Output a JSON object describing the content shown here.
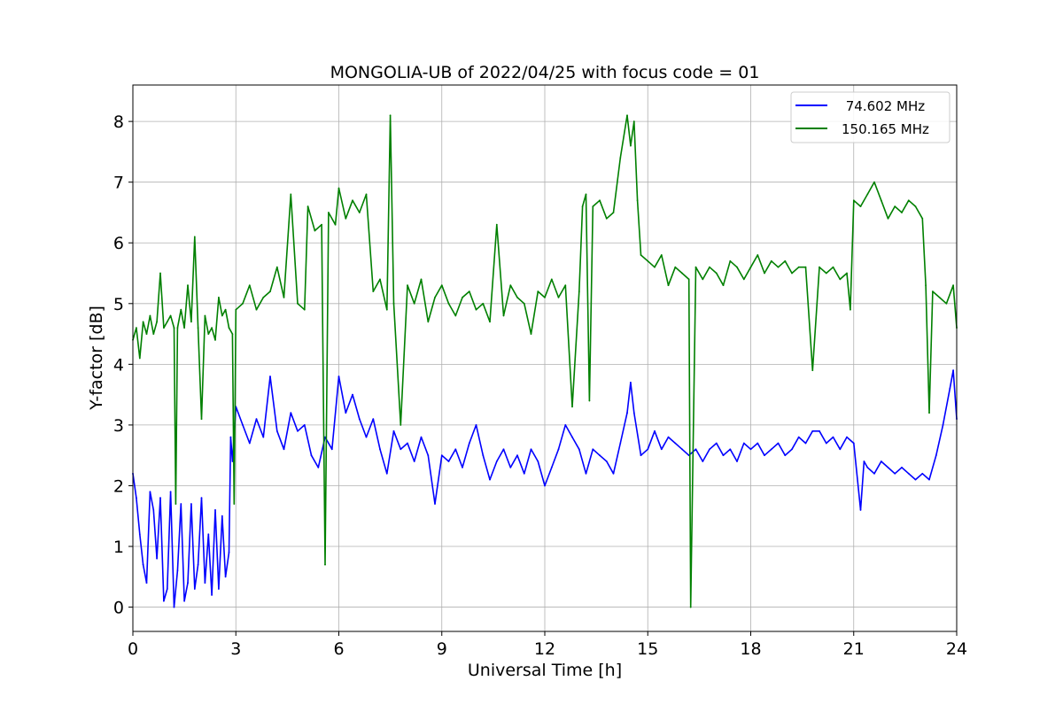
{
  "chart_data": {
    "type": "line",
    "title": "MONGOLIA-UB of 2022/04/25 with focus code = 01",
    "xlabel": "Universal Time [h]",
    "ylabel": "Y-factor [dB]",
    "xlim": [
      0,
      24
    ],
    "ylim": [
      -0.4,
      8.6
    ],
    "x_ticks": [
      0,
      3,
      6,
      9,
      12,
      15,
      18,
      21,
      24
    ],
    "x_tick_labels": [
      "0",
      "3",
      "6",
      "9",
      "12",
      "15",
      "18",
      "21",
      "24"
    ],
    "y_ticks": [
      0,
      1,
      2,
      3,
      4,
      5,
      6,
      7,
      8
    ],
    "y_tick_labels": [
      "0",
      "1",
      "2",
      "3",
      "4",
      "5",
      "6",
      "7",
      "8"
    ],
    "grid": true,
    "legend_position": "top-right",
    "series": [
      {
        "name": " 74.602 MHz",
        "color": "#0000ff",
        "points": [
          [
            0.0,
            2.2
          ],
          [
            0.1,
            1.8
          ],
          [
            0.2,
            1.2
          ],
          [
            0.3,
            0.7
          ],
          [
            0.4,
            0.4
          ],
          [
            0.5,
            1.9
          ],
          [
            0.6,
            1.6
          ],
          [
            0.7,
            0.8
          ],
          [
            0.8,
            1.8
          ],
          [
            0.9,
            0.1
          ],
          [
            1.0,
            0.3
          ],
          [
            1.1,
            1.9
          ],
          [
            1.2,
            0.0
          ],
          [
            1.3,
            0.6
          ],
          [
            1.4,
            1.7
          ],
          [
            1.5,
            0.1
          ],
          [
            1.6,
            0.4
          ],
          [
            1.7,
            1.7
          ],
          [
            1.8,
            0.3
          ],
          [
            1.9,
            0.7
          ],
          [
            2.0,
            1.8
          ],
          [
            2.1,
            0.4
          ],
          [
            2.2,
            1.2
          ],
          [
            2.3,
            0.2
          ],
          [
            2.4,
            1.6
          ],
          [
            2.5,
            0.3
          ],
          [
            2.6,
            1.5
          ],
          [
            2.7,
            0.5
          ],
          [
            2.8,
            0.9
          ],
          [
            2.85,
            2.8
          ],
          [
            2.9,
            2.4
          ],
          [
            3.0,
            3.3
          ],
          [
            3.2,
            3.0
          ],
          [
            3.4,
            2.7
          ],
          [
            3.6,
            3.1
          ],
          [
            3.8,
            2.8
          ],
          [
            4.0,
            3.8
          ],
          [
            4.2,
            2.9
          ],
          [
            4.4,
            2.6
          ],
          [
            4.6,
            3.2
          ],
          [
            4.8,
            2.9
          ],
          [
            5.0,
            3.0
          ],
          [
            5.2,
            2.5
          ],
          [
            5.4,
            2.3
          ],
          [
            5.6,
            2.8
          ],
          [
            5.8,
            2.6
          ],
          [
            6.0,
            3.8
          ],
          [
            6.2,
            3.2
          ],
          [
            6.4,
            3.5
          ],
          [
            6.6,
            3.1
          ],
          [
            6.8,
            2.8
          ],
          [
            7.0,
            3.1
          ],
          [
            7.2,
            2.6
          ],
          [
            7.4,
            2.2
          ],
          [
            7.6,
            2.9
          ],
          [
            7.8,
            2.6
          ],
          [
            8.0,
            2.7
          ],
          [
            8.2,
            2.4
          ],
          [
            8.4,
            2.8
          ],
          [
            8.6,
            2.5
          ],
          [
            8.8,
            1.7
          ],
          [
            9.0,
            2.5
          ],
          [
            9.2,
            2.4
          ],
          [
            9.4,
            2.6
          ],
          [
            9.6,
            2.3
          ],
          [
            9.8,
            2.7
          ],
          [
            10.0,
            3.0
          ],
          [
            10.2,
            2.5
          ],
          [
            10.4,
            2.1
          ],
          [
            10.6,
            2.4
          ],
          [
            10.8,
            2.6
          ],
          [
            11.0,
            2.3
          ],
          [
            11.2,
            2.5
          ],
          [
            11.4,
            2.2
          ],
          [
            11.6,
            2.6
          ],
          [
            11.8,
            2.4
          ],
          [
            12.0,
            2.0
          ],
          [
            12.2,
            2.3
          ],
          [
            12.4,
            2.6
          ],
          [
            12.6,
            3.0
          ],
          [
            12.8,
            2.8
          ],
          [
            13.0,
            2.6
          ],
          [
            13.2,
            2.2
          ],
          [
            13.4,
            2.6
          ],
          [
            13.6,
            2.5
          ],
          [
            13.8,
            2.4
          ],
          [
            14.0,
            2.2
          ],
          [
            14.2,
            2.7
          ],
          [
            14.4,
            3.2
          ],
          [
            14.5,
            3.7
          ],
          [
            14.6,
            3.2
          ],
          [
            14.8,
            2.5
          ],
          [
            15.0,
            2.6
          ],
          [
            15.2,
            2.9
          ],
          [
            15.4,
            2.6
          ],
          [
            15.6,
            2.8
          ],
          [
            15.8,
            2.7
          ],
          [
            16.0,
            2.6
          ],
          [
            16.2,
            2.5
          ],
          [
            16.4,
            2.6
          ],
          [
            16.6,
            2.4
          ],
          [
            16.8,
            2.6
          ],
          [
            17.0,
            2.7
          ],
          [
            17.2,
            2.5
          ],
          [
            17.4,
            2.6
          ],
          [
            17.6,
            2.4
          ],
          [
            17.8,
            2.7
          ],
          [
            18.0,
            2.6
          ],
          [
            18.2,
            2.7
          ],
          [
            18.4,
            2.5
          ],
          [
            18.6,
            2.6
          ],
          [
            18.8,
            2.7
          ],
          [
            19.0,
            2.5
          ],
          [
            19.2,
            2.6
          ],
          [
            19.4,
            2.8
          ],
          [
            19.6,
            2.7
          ],
          [
            19.8,
            2.9
          ],
          [
            20.0,
            2.9
          ],
          [
            20.2,
            2.7
          ],
          [
            20.4,
            2.8
          ],
          [
            20.6,
            2.6
          ],
          [
            20.8,
            2.8
          ],
          [
            21.0,
            2.7
          ],
          [
            21.2,
            1.6
          ],
          [
            21.3,
            2.4
          ],
          [
            21.4,
            2.3
          ],
          [
            21.6,
            2.2
          ],
          [
            21.8,
            2.4
          ],
          [
            22.0,
            2.3
          ],
          [
            22.2,
            2.2
          ],
          [
            22.4,
            2.3
          ],
          [
            22.6,
            2.2
          ],
          [
            22.8,
            2.1
          ],
          [
            23.0,
            2.2
          ],
          [
            23.2,
            2.1
          ],
          [
            23.4,
            2.5
          ],
          [
            23.6,
            3.0
          ],
          [
            23.8,
            3.6
          ],
          [
            23.9,
            3.9
          ],
          [
            24.0,
            3.1
          ]
        ]
      },
      {
        "name": "150.165 MHz",
        "color": "#008000",
        "points": [
          [
            0.0,
            4.4
          ],
          [
            0.1,
            4.6
          ],
          [
            0.2,
            4.1
          ],
          [
            0.3,
            4.7
          ],
          [
            0.4,
            4.5
          ],
          [
            0.5,
            4.8
          ],
          [
            0.6,
            4.5
          ],
          [
            0.7,
            4.7
          ],
          [
            0.8,
            5.5
          ],
          [
            0.9,
            4.6
          ],
          [
            1.0,
            4.7
          ],
          [
            1.1,
            4.8
          ],
          [
            1.2,
            4.6
          ],
          [
            1.25,
            1.7
          ],
          [
            1.3,
            4.6
          ],
          [
            1.4,
            4.9
          ],
          [
            1.5,
            4.6
          ],
          [
            1.6,
            5.3
          ],
          [
            1.7,
            4.7
          ],
          [
            1.8,
            6.1
          ],
          [
            1.9,
            4.6
          ],
          [
            2.0,
            3.1
          ],
          [
            2.1,
            4.8
          ],
          [
            2.2,
            4.5
          ],
          [
            2.3,
            4.6
          ],
          [
            2.4,
            4.4
          ],
          [
            2.5,
            5.1
          ],
          [
            2.6,
            4.8
          ],
          [
            2.7,
            4.9
          ],
          [
            2.8,
            4.6
          ],
          [
            2.9,
            4.5
          ],
          [
            2.95,
            1.7
          ],
          [
            3.0,
            4.9
          ],
          [
            3.2,
            5.0
          ],
          [
            3.4,
            5.3
          ],
          [
            3.6,
            4.9
          ],
          [
            3.8,
            5.1
          ],
          [
            4.0,
            5.2
          ],
          [
            4.2,
            5.6
          ],
          [
            4.4,
            5.1
          ],
          [
            4.6,
            6.8
          ],
          [
            4.8,
            5.0
          ],
          [
            5.0,
            4.9
          ],
          [
            5.1,
            6.6
          ],
          [
            5.3,
            6.2
          ],
          [
            5.5,
            6.3
          ],
          [
            5.6,
            0.7
          ],
          [
            5.7,
            6.5
          ],
          [
            5.9,
            6.3
          ],
          [
            6.0,
            6.9
          ],
          [
            6.2,
            6.4
          ],
          [
            6.4,
            6.7
          ],
          [
            6.6,
            6.5
          ],
          [
            6.8,
            6.8
          ],
          [
            7.0,
            5.2
          ],
          [
            7.2,
            5.4
          ],
          [
            7.4,
            4.9
          ],
          [
            7.5,
            8.1
          ],
          [
            7.6,
            5.0
          ],
          [
            7.8,
            3.0
          ],
          [
            8.0,
            5.3
          ],
          [
            8.2,
            5.0
          ],
          [
            8.4,
            5.4
          ],
          [
            8.6,
            4.7
          ],
          [
            8.8,
            5.1
          ],
          [
            9.0,
            5.3
          ],
          [
            9.2,
            5.0
          ],
          [
            9.4,
            4.8
          ],
          [
            9.6,
            5.1
          ],
          [
            9.8,
            5.2
          ],
          [
            10.0,
            4.9
          ],
          [
            10.2,
            5.0
          ],
          [
            10.4,
            4.7
          ],
          [
            10.6,
            6.3
          ],
          [
            10.8,
            4.8
          ],
          [
            11.0,
            5.3
          ],
          [
            11.2,
            5.1
          ],
          [
            11.4,
            5.0
          ],
          [
            11.6,
            4.5
          ],
          [
            11.8,
            5.2
          ],
          [
            12.0,
            5.1
          ],
          [
            12.2,
            5.4
          ],
          [
            12.4,
            5.1
          ],
          [
            12.6,
            5.3
          ],
          [
            12.8,
            3.3
          ],
          [
            13.0,
            5.2
          ],
          [
            13.1,
            6.6
          ],
          [
            13.2,
            6.8
          ],
          [
            13.3,
            3.4
          ],
          [
            13.4,
            6.6
          ],
          [
            13.6,
            6.7
          ],
          [
            13.8,
            6.4
          ],
          [
            14.0,
            6.5
          ],
          [
            14.2,
            7.4
          ],
          [
            14.4,
            8.1
          ],
          [
            14.5,
            7.6
          ],
          [
            14.6,
            8.0
          ],
          [
            14.7,
            6.7
          ],
          [
            14.8,
            5.8
          ],
          [
            15.0,
            5.7
          ],
          [
            15.2,
            5.6
          ],
          [
            15.4,
            5.8
          ],
          [
            15.6,
            5.3
          ],
          [
            15.8,
            5.6
          ],
          [
            16.0,
            5.5
          ],
          [
            16.2,
            5.4
          ],
          [
            16.25,
            0.0
          ],
          [
            16.4,
            5.6
          ],
          [
            16.6,
            5.4
          ],
          [
            16.8,
            5.6
          ],
          [
            17.0,
            5.5
          ],
          [
            17.2,
            5.3
          ],
          [
            17.4,
            5.7
          ],
          [
            17.6,
            5.6
          ],
          [
            17.8,
            5.4
          ],
          [
            18.0,
            5.6
          ],
          [
            18.2,
            5.8
          ],
          [
            18.4,
            5.5
          ],
          [
            18.6,
            5.7
          ],
          [
            18.8,
            5.6
          ],
          [
            19.0,
            5.7
          ],
          [
            19.2,
            5.5
          ],
          [
            19.4,
            5.6
          ],
          [
            19.6,
            5.6
          ],
          [
            19.8,
            3.9
          ],
          [
            20.0,
            5.6
          ],
          [
            20.2,
            5.5
          ],
          [
            20.4,
            5.6
          ],
          [
            20.6,
            5.4
          ],
          [
            20.8,
            5.5
          ],
          [
            20.9,
            4.9
          ],
          [
            21.0,
            6.7
          ],
          [
            21.2,
            6.6
          ],
          [
            21.4,
            6.8
          ],
          [
            21.6,
            7.0
          ],
          [
            21.8,
            6.7
          ],
          [
            22.0,
            6.4
          ],
          [
            22.2,
            6.6
          ],
          [
            22.4,
            6.5
          ],
          [
            22.6,
            6.7
          ],
          [
            22.8,
            6.6
          ],
          [
            23.0,
            6.4
          ],
          [
            23.1,
            5.3
          ],
          [
            23.2,
            3.2
          ],
          [
            23.3,
            5.2
          ],
          [
            23.5,
            5.1
          ],
          [
            23.7,
            5.0
          ],
          [
            23.9,
            5.3
          ],
          [
            24.0,
            4.6
          ]
        ]
      }
    ]
  }
}
